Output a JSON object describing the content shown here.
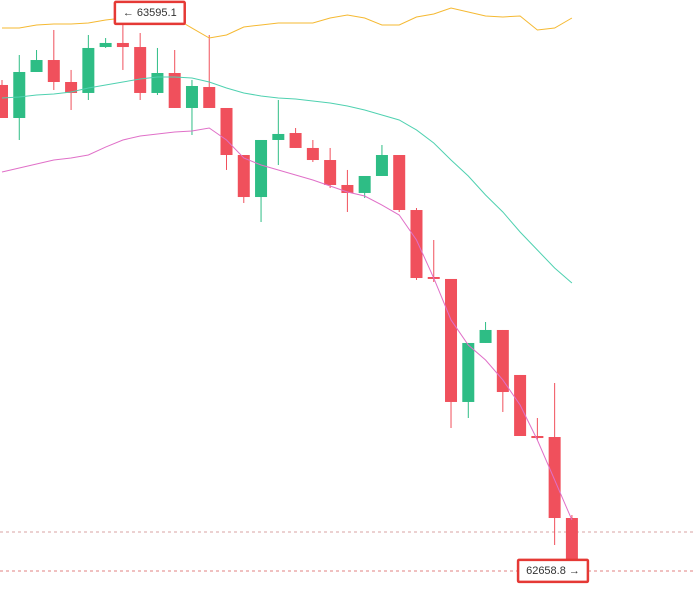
{
  "chart_data": {
    "type": "candlestick",
    "ylim": [
      62603.4,
      63616.9
    ],
    "up_color": "#2ebd85",
    "down_color": "#f0505c",
    "open": [
      63474.3,
      63418.9,
      63496.1,
      63516.2,
      63479.3,
      63460.9,
      63538.0,
      63544.8,
      63538.0,
      63460.9,
      63494.4,
      63435.7,
      63470.9,
      63435.7,
      63356.8,
      63286.3,
      63382.0,
      63393.7,
      63368.6,
      63348.4,
      63306.5,
      63293.1,
      63321.6,
      63356.8,
      63264.5,
      63152.1,
      63148.8,
      62942.4,
      63041.4,
      63063.2,
      62987.7,
      62885.3,
      62883.6,
      62747.7
    ],
    "high": [
      63482.7,
      63524.6,
      63533.0,
      63566.6,
      63499.5,
      63558.2,
      63553.1,
      63595.1,
      63561.5,
      63536.4,
      63533.0,
      63482.7,
      63558.2,
      63435.7,
      63356.8,
      63382.0,
      63449.1,
      63402.1,
      63382.0,
      63368.6,
      63331.7,
      63321.6,
      63373.6,
      63356.8,
      63267.9,
      63214.2,
      63148.8,
      63041.4,
      63076.6,
      63063.2,
      62987.7,
      62915.5,
      62974.2,
      62752.7
    ],
    "low": [
      63418.9,
      63382.0,
      63496.1,
      63465.9,
      63432.3,
      63449.1,
      63536.4,
      63499.5,
      63449.1,
      63457.5,
      63435.7,
      63390.4,
      63435.7,
      63331.7,
      63276.3,
      63244.4,
      63340.0,
      63368.6,
      63345.1,
      63301.4,
      63261.2,
      63284.7,
      63321.6,
      63261.2,
      63147.1,
      63143.7,
      62898.7,
      62915.5,
      63041.4,
      62925.6,
      62885.3,
      62878.6,
      62702.4,
      62658.8
    ],
    "close": [
      63418.9,
      63496.1,
      63516.2,
      63479.3,
      63460.9,
      63536.4,
      63544.8,
      63538.0,
      63460.9,
      63494.4,
      63435.7,
      63472.6,
      63435.7,
      63356.8,
      63286.3,
      63382.0,
      63392.1,
      63368.6,
      63348.4,
      63306.5,
      63293.1,
      63321.6,
      63356.8,
      63264.5,
      63150.4,
      63148.8,
      62942.4,
      63041.4,
      63063.2,
      62959.1,
      62885.3,
      62881.9,
      62747.7,
      62665.5
    ],
    "bands": [
      {
        "color": "#f5b932",
        "values": [
          63569.9,
          63569.9,
          63575.0,
          63576.6,
          63576.6,
          63578.3,
          63583.4,
          63586.7,
          63590.1,
          63590.1,
          63586.7,
          63569.9,
          63553.1,
          63558.2,
          63571.6,
          63575.0,
          63578.3,
          63578.3,
          63578.3,
          63586.7,
          63591.7,
          63586.7,
          63575.0,
          63575.0,
          63588.4,
          63593.4,
          63603.5,
          63596.8,
          63590.1,
          63588.4,
          63590.1,
          63566.6,
          63569.9,
          63586.7
        ]
      },
      {
        "color": "#4fd1b0",
        "values": [
          63452.5,
          63454.2,
          63457.5,
          63459.2,
          63462.5,
          63469.2,
          63474.3,
          63479.3,
          63484.4,
          63487.7,
          63487.7,
          63486.0,
          63479.3,
          63469.2,
          63460.9,
          63455.8,
          63452.5,
          63450.8,
          63447.4,
          63444.1,
          63439.0,
          63432.3,
          63423.9,
          63415.6,
          63398.8,
          63377.0,
          63348.4,
          63321.6,
          63289.7,
          63261.2,
          63227.6,
          63197.4,
          63167.2,
          63142.0
        ]
      },
      {
        "color": "#e070c8",
        "values": [
          63328.3,
          63335.0,
          63341.7,
          63348.4,
          63351.8,
          63356.8,
          63370.2,
          63382.0,
          63388.7,
          63392.1,
          63395.4,
          63397.1,
          63402.1,
          63382.0,
          63351.8,
          63340.0,
          63331.7,
          63323.3,
          63314.9,
          63304.8,
          63294.7,
          63288.0,
          63272.9,
          63256.1,
          63214.2,
          63150.4,
          63080.0,
          63038.0,
          63012.8,
          62979.3,
          62937.3,
          62878.6,
          62811.5,
          62744.4
        ]
      }
    ],
    "last_price_line": 62724.2,
    "high_marker": {
      "value": 63595.1,
      "label": "← 63595.1",
      "index": 7
    },
    "low_marker": {
      "value": 62658.8,
      "label": "62658.8 →",
      "index": 33
    }
  }
}
